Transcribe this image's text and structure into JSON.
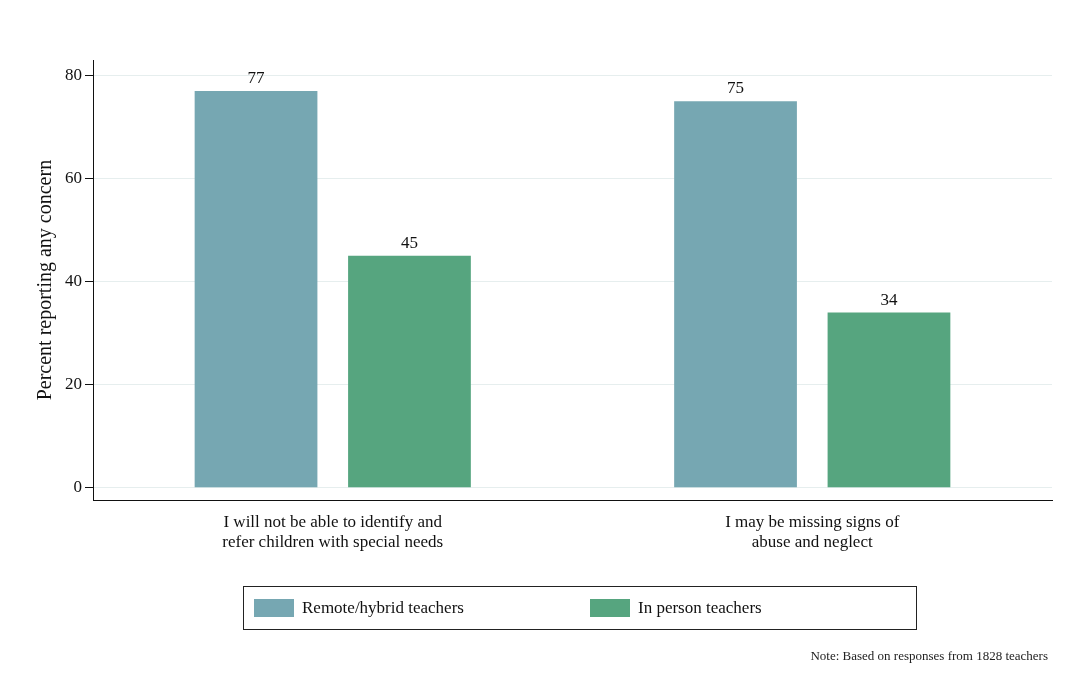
{
  "chart_data": {
    "type": "bar",
    "categories": [
      "I will not be able to identify and\nrefer children with special needs",
      "I may be missing signs of\nabuse and neglect"
    ],
    "series": [
      {
        "name": "Remote/hybrid teachers",
        "color": "#76a7b2",
        "values": [
          77,
          75
        ]
      },
      {
        "name": "In person teachers",
        "color": "#56a57f",
        "values": [
          45,
          34
        ]
      }
    ],
    "ylabel": "Percent reporting any concern",
    "ylim": [
      -2.4,
      83
    ],
    "yticks": [
      0,
      20,
      40,
      60,
      80
    ],
    "grid": "y",
    "legend": "bottom",
    "data_labels": true,
    "annotations": [
      "Note: Based on responses from 1828 teachers"
    ]
  }
}
